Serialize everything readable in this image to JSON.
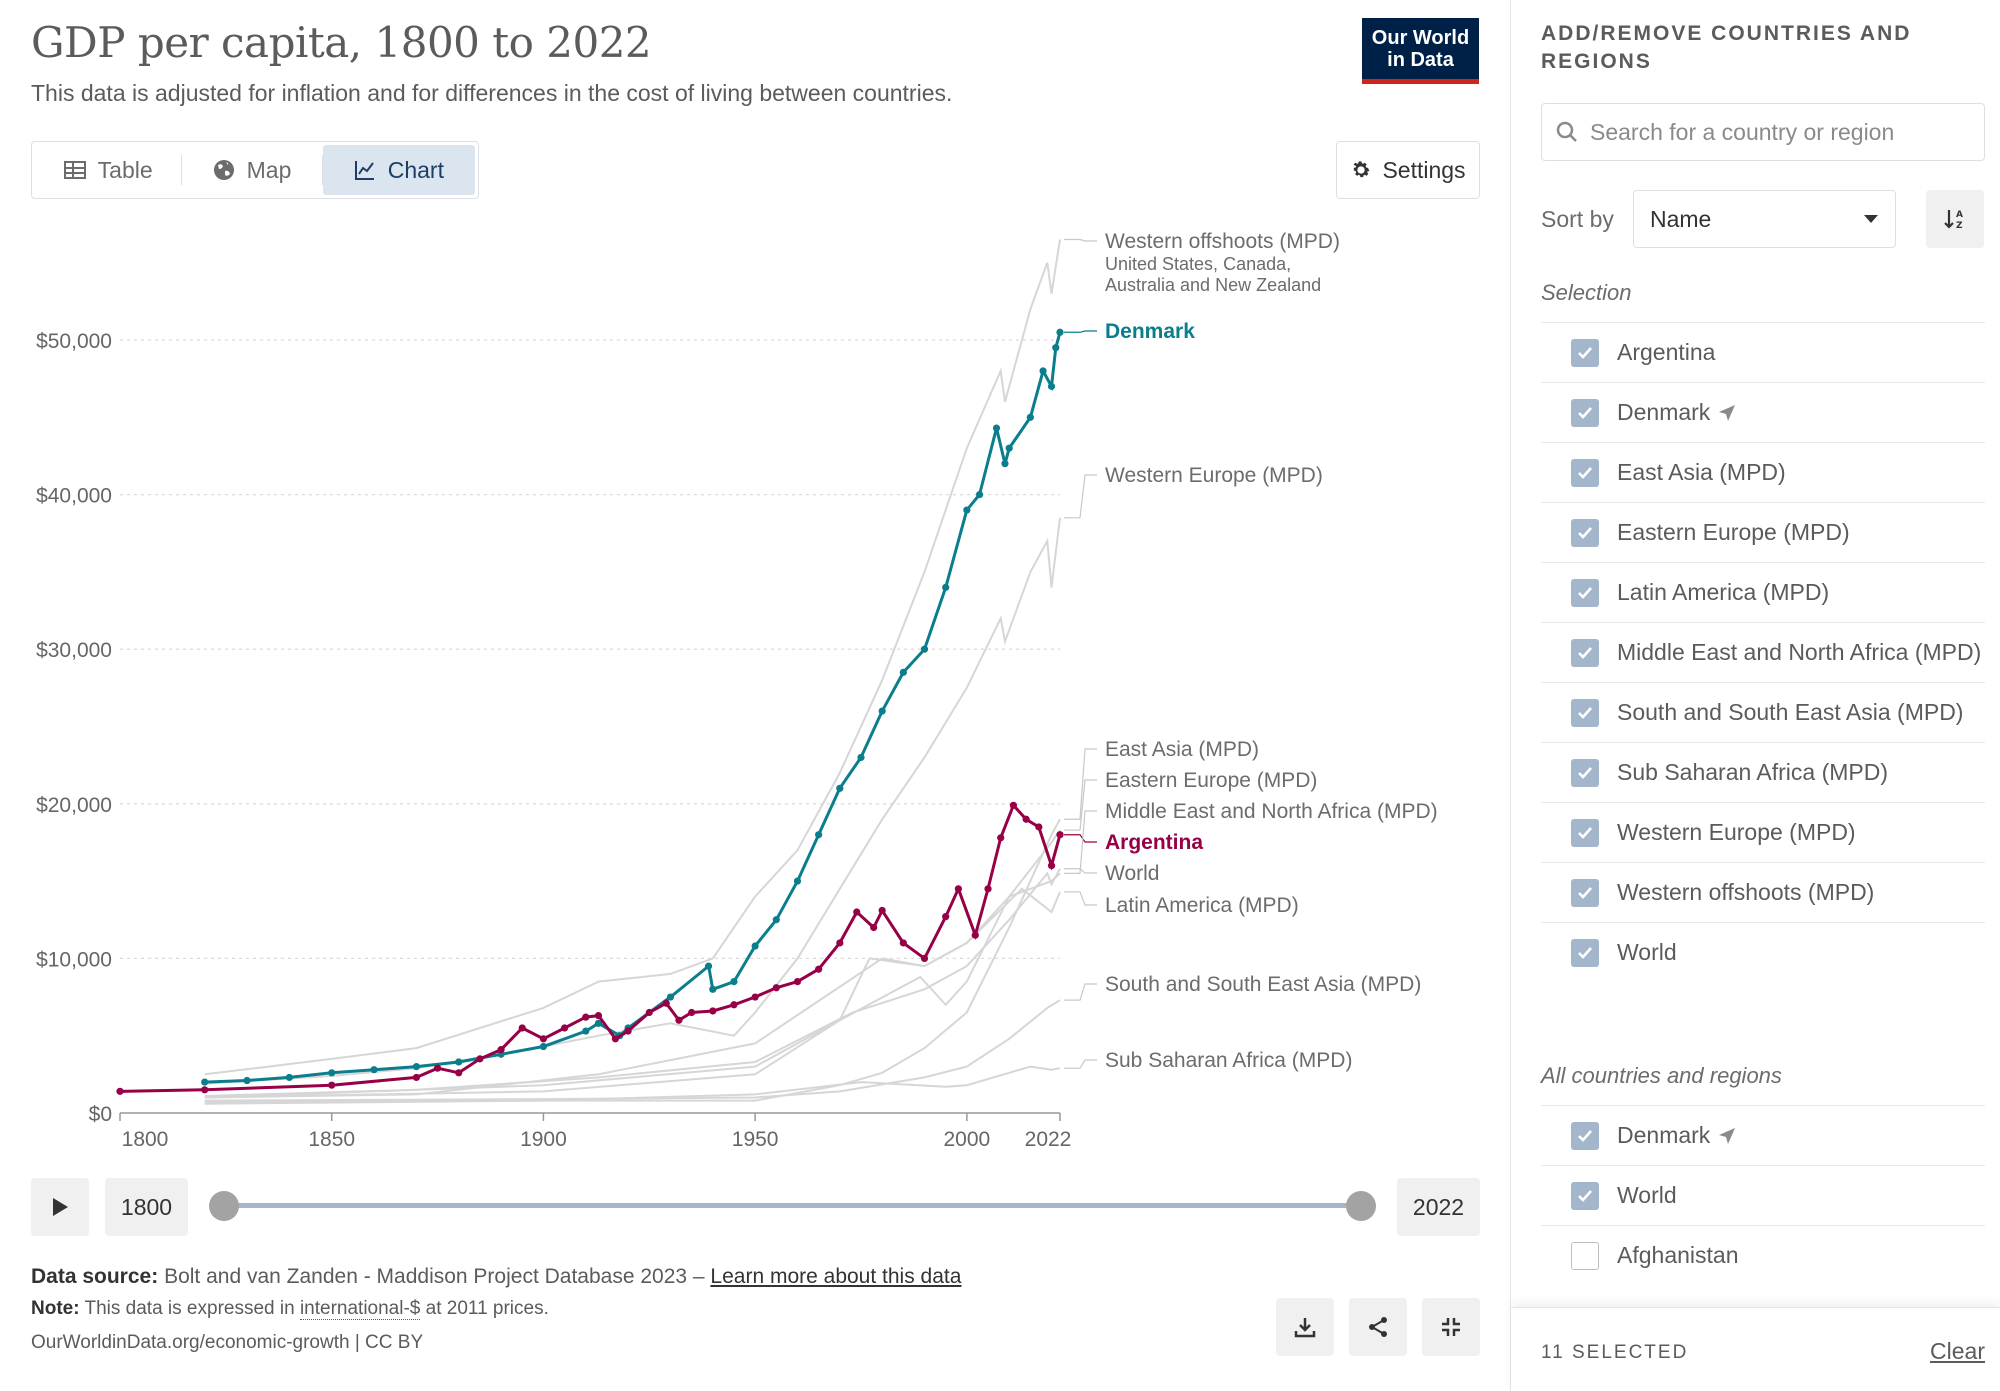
{
  "header": {
    "title": "GDP per capita, 1800 to 2022",
    "subtitle": "This data is adjusted for inflation and for differences in the cost of living between countries.",
    "logo_line1": "Our World",
    "logo_line2": "in Data"
  },
  "tabs": [
    {
      "label": "Table",
      "icon": "table-icon"
    },
    {
      "label": "Map",
      "icon": "globe-icon"
    },
    {
      "label": "Chart",
      "icon": "line-chart-icon",
      "active": true
    }
  ],
  "settings_label": "Settings",
  "timeline": {
    "start_label": "1800",
    "end_label": "2022"
  },
  "footer": {
    "source_prefix": "Data source:",
    "source_text": "Bolt and van Zanden - Maddison Project Database 2023 –",
    "source_link": "Learn more about this data",
    "note_prefix": "Note:",
    "note_text_1": "This data is expressed in",
    "note_link": "international-$",
    "note_text_2": "at 2011 prices.",
    "credit": "OurWorldinData.org/economic-growth | CC BY"
  },
  "sidebar": {
    "heading": "ADD/REMOVE COUNTRIES AND REGIONS",
    "search_placeholder": "Search for a country or region",
    "sort_label": "Sort by",
    "sort_value": "Name",
    "selection_label": "Selection",
    "selection": [
      {
        "label": "Argentina",
        "checked": true
      },
      {
        "label": "Denmark",
        "checked": true,
        "arrow": true
      },
      {
        "label": "East Asia (MPD)",
        "checked": true
      },
      {
        "label": "Eastern Europe (MPD)",
        "checked": true
      },
      {
        "label": "Latin America (MPD)",
        "checked": true
      },
      {
        "label": "Middle East and North Africa (MPD)",
        "checked": true
      },
      {
        "label": "South and South East Asia (MPD)",
        "checked": true
      },
      {
        "label": "Sub Saharan Africa (MPD)",
        "checked": true
      },
      {
        "label": "Western Europe (MPD)",
        "checked": true
      },
      {
        "label": "Western offshoots (MPD)",
        "checked": true
      },
      {
        "label": "World",
        "checked": true
      }
    ],
    "all_label": "All countries and regions",
    "all": [
      {
        "label": "Denmark",
        "checked": true,
        "arrow": true
      },
      {
        "label": "World",
        "checked": true
      },
      {
        "label": "Afghanistan",
        "checked": false
      }
    ],
    "selected_count": "11 SELECTED",
    "clear_label": "Clear"
  },
  "colors": {
    "denmark": "#0a7e8c",
    "argentina": "#970046",
    "background_lines": "#d9d9d9",
    "accent": "#a4b6cb"
  },
  "chart_data": {
    "type": "line",
    "title": "GDP per capita, 1800 to 2022",
    "xlim": [
      1800,
      2022
    ],
    "ylim": [
      0,
      50000
    ],
    "x_ticks": [
      1800,
      1850,
      1900,
      1950,
      2000,
      2022
    ],
    "y_ticks": [
      0,
      10000,
      20000,
      30000,
      40000,
      50000
    ],
    "y_tick_labels": [
      "$0",
      "$10,000",
      "$20,000",
      "$30,000",
      "$40,000",
      "$50,000"
    ],
    "grid": "horizontal dotted",
    "series": [
      {
        "name": "Denmark",
        "highlight": true,
        "color": "#0a7e8c",
        "points": [
          [
            1820,
            2000
          ],
          [
            1830,
            2100
          ],
          [
            1840,
            2300
          ],
          [
            1850,
            2600
          ],
          [
            1860,
            2800
          ],
          [
            1870,
            3000
          ],
          [
            1880,
            3300
          ],
          [
            1890,
            3800
          ],
          [
            1900,
            4300
          ],
          [
            1910,
            5300
          ],
          [
            1913,
            5800
          ],
          [
            1918,
            5000
          ],
          [
            1920,
            5500
          ],
          [
            1930,
            7500
          ],
          [
            1939,
            9500
          ],
          [
            1940,
            8000
          ],
          [
            1945,
            8500
          ],
          [
            1950,
            10800
          ],
          [
            1955,
            12500
          ],
          [
            1960,
            15000
          ],
          [
            1965,
            18000
          ],
          [
            1970,
            21000
          ],
          [
            1975,
            23000
          ],
          [
            1980,
            26000
          ],
          [
            1985,
            28500
          ],
          [
            1990,
            30000
          ],
          [
            1995,
            34000
          ],
          [
            2000,
            39000
          ],
          [
            2003,
            40000
          ],
          [
            2007,
            44300
          ],
          [
            2009,
            42000
          ],
          [
            2010,
            43000
          ],
          [
            2015,
            45000
          ],
          [
            2018,
            48000
          ],
          [
            2020,
            47000
          ],
          [
            2021,
            49500
          ],
          [
            2022,
            50500
          ]
        ]
      },
      {
        "name": "Argentina",
        "highlight": true,
        "color": "#970046",
        "points": [
          [
            1800,
            1400
          ],
          [
            1820,
            1500
          ],
          [
            1850,
            1800
          ],
          [
            1870,
            2300
          ],
          [
            1875,
            2900
          ],
          [
            1880,
            2600
          ],
          [
            1885,
            3500
          ],
          [
            1890,
            4100
          ],
          [
            1895,
            5500
          ],
          [
            1900,
            4800
          ],
          [
            1905,
            5500
          ],
          [
            1910,
            6200
          ],
          [
            1913,
            6300
          ],
          [
            1917,
            4800
          ],
          [
            1920,
            5300
          ],
          [
            1925,
            6500
          ],
          [
            1929,
            7100
          ],
          [
            1932,
            6000
          ],
          [
            1935,
            6500
          ],
          [
            1940,
            6600
          ],
          [
            1945,
            7000
          ],
          [
            1950,
            7500
          ],
          [
            1955,
            8100
          ],
          [
            1960,
            8500
          ],
          [
            1965,
            9300
          ],
          [
            1970,
            11000
          ],
          [
            1974,
            13000
          ],
          [
            1978,
            12000
          ],
          [
            1980,
            13100
          ],
          [
            1985,
            11000
          ],
          [
            1990,
            10000
          ],
          [
            1995,
            12700
          ],
          [
            1998,
            14500
          ],
          [
            2002,
            11500
          ],
          [
            2005,
            14500
          ],
          [
            2008,
            17800
          ],
          [
            2011,
            19900
          ],
          [
            2014,
            19000
          ],
          [
            2017,
            18500
          ],
          [
            2020,
            16000
          ],
          [
            2022,
            18000
          ]
        ]
      },
      {
        "name": "Western offshoots (MPD)",
        "subtitle": "United States, Canada, Australia and New Zealand",
        "points": [
          [
            1820,
            2500
          ],
          [
            1850,
            3500
          ],
          [
            1870,
            4200
          ],
          [
            1900,
            6800
          ],
          [
            1913,
            8500
          ],
          [
            1930,
            9000
          ],
          [
            1940,
            10000
          ],
          [
            1950,
            14000
          ],
          [
            1960,
            17000
          ],
          [
            1970,
            22000
          ],
          [
            1980,
            28000
          ],
          [
            1990,
            35000
          ],
          [
            2000,
            43000
          ],
          [
            2008,
            48000
          ],
          [
            2009,
            46000
          ],
          [
            2015,
            52000
          ],
          [
            2019,
            55000
          ],
          [
            2020,
            53000
          ],
          [
            2022,
            56500
          ]
        ]
      },
      {
        "name": "Western Europe (MPD)",
        "points": [
          [
            1820,
            1900
          ],
          [
            1850,
            2400
          ],
          [
            1870,
            2900
          ],
          [
            1900,
            4300
          ],
          [
            1913,
            5000
          ],
          [
            1930,
            5800
          ],
          [
            1945,
            5000
          ],
          [
            1950,
            6500
          ],
          [
            1960,
            10000
          ],
          [
            1970,
            14500
          ],
          [
            1980,
            19000
          ],
          [
            1990,
            23000
          ],
          [
            2000,
            27500
          ],
          [
            2008,
            32000
          ],
          [
            2009,
            30500
          ],
          [
            2015,
            35000
          ],
          [
            2019,
            37000
          ],
          [
            2020,
            34000
          ],
          [
            2022,
            38500
          ]
        ]
      },
      {
        "name": "East Asia (MPD)",
        "points": [
          [
            1820,
            700
          ],
          [
            1900,
            800
          ],
          [
            1950,
            800
          ],
          [
            1970,
            1800
          ],
          [
            1980,
            2600
          ],
          [
            1990,
            4200
          ],
          [
            2000,
            6500
          ],
          [
            2010,
            12000
          ],
          [
            2020,
            18000
          ],
          [
            2022,
            19000
          ]
        ]
      },
      {
        "name": "Eastern Europe (MPD)",
        "points": [
          [
            1820,
            1000
          ],
          [
            1900,
            1800
          ],
          [
            1950,
            3000
          ],
          [
            1970,
            6000
          ],
          [
            1989,
            8800
          ],
          [
            1995,
            7000
          ],
          [
            2000,
            8500
          ],
          [
            2010,
            14000
          ],
          [
            2020,
            17500
          ],
          [
            2022,
            18300
          ]
        ]
      },
      {
        "name": "Middle East and North Africa (MPD)",
        "points": [
          [
            1820,
            1000
          ],
          [
            1900,
            1400
          ],
          [
            1950,
            2500
          ],
          [
            1970,
            6000
          ],
          [
            1977,
            10000
          ],
          [
            1990,
            9500
          ],
          [
            2000,
            11000
          ],
          [
            2010,
            14000
          ],
          [
            2020,
            15000
          ],
          [
            2022,
            15500
          ]
        ]
      },
      {
        "name": "World",
        "points": [
          [
            1820,
            1100
          ],
          [
            1870,
            1500
          ],
          [
            1913,
            2300
          ],
          [
            1950,
            3300
          ],
          [
            1973,
            6500
          ],
          [
            1990,
            8000
          ],
          [
            2000,
            9500
          ],
          [
            2010,
            12500
          ],
          [
            2019,
            15500
          ],
          [
            2020,
            14800
          ],
          [
            2022,
            15800
          ]
        ]
      },
      {
        "name": "Latin America (MPD)",
        "points": [
          [
            1820,
            1000
          ],
          [
            1870,
            1200
          ],
          [
            1913,
            2500
          ],
          [
            1950,
            4500
          ],
          [
            1980,
            10000
          ],
          [
            1990,
            9500
          ],
          [
            2000,
            11000
          ],
          [
            2013,
            14500
          ],
          [
            2020,
            13000
          ],
          [
            2022,
            14300
          ]
        ]
      },
      {
        "name": "South and South East Asia (MPD)",
        "points": [
          [
            1820,
            800
          ],
          [
            1900,
            900
          ],
          [
            1950,
            1000
          ],
          [
            1970,
            1400
          ],
          [
            1990,
            2300
          ],
          [
            2000,
            3000
          ],
          [
            2010,
            4800
          ],
          [
            2019,
            6800
          ],
          [
            2022,
            7300
          ]
        ]
      },
      {
        "name": "Sub Saharan Africa (MPD)",
        "points": [
          [
            1820,
            600
          ],
          [
            1900,
            800
          ],
          [
            1950,
            1200
          ],
          [
            1975,
            2000
          ],
          [
            1995,
            1700
          ],
          [
            2000,
            1800
          ],
          [
            2010,
            2600
          ],
          [
            2015,
            3000
          ],
          [
            2020,
            2800
          ],
          [
            2022,
            2900
          ]
        ]
      }
    ]
  }
}
